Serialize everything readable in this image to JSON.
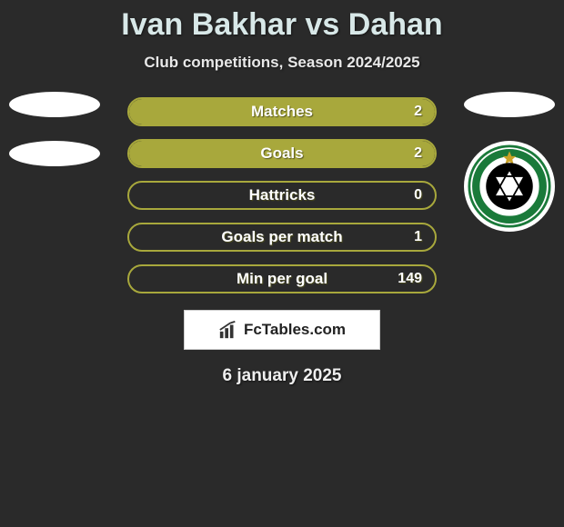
{
  "title": "Ivan Bakhar vs Dahan",
  "subtitle": "Club competitions, Season 2024/2025",
  "stats": [
    {
      "label": "Matches",
      "value": "2",
      "fill_pct": 100
    },
    {
      "label": "Goals",
      "value": "2",
      "fill_pct": 100
    },
    {
      "label": "Hattricks",
      "value": "0",
      "fill_pct": 0
    },
    {
      "label": "Goals per match",
      "value": "1",
      "fill_pct": 0
    },
    {
      "label": "Min per goal",
      "value": "149",
      "fill_pct": 0
    }
  ],
  "logo_text": "FcTables.com",
  "date": "6 january 2025",
  "colors": {
    "background": "#2a2a2a",
    "bar_fill": "#a8a83c",
    "bar_border": "#a8a83c",
    "title_color": "#d8e8e8",
    "text_color": "#ffffff",
    "logo_box_bg": "#ffffff",
    "club_badge_green": "#1a7a3a",
    "club_badge_black": "#000000"
  },
  "club_badge_text": "MACCABI HAIFA F.C."
}
